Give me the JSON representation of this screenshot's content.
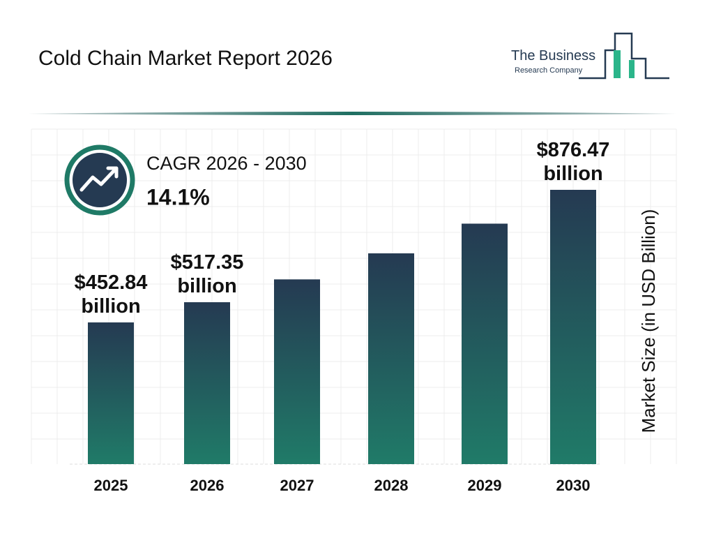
{
  "header": {
    "title": "Cold Chain Market Report 2026",
    "logo_line1": "The Business",
    "logo_line2": "Research Company"
  },
  "cagr": {
    "label": "CAGR 2026 - 2030",
    "value": "14.1%"
  },
  "chart_data": {
    "type": "bar",
    "categories": [
      "2025",
      "2026",
      "2027",
      "2028",
      "2029",
      "2030"
    ],
    "values": [
      452.84,
      517.35,
      590.3,
      673.5,
      768.4,
      876.47
    ],
    "value_labels": [
      "$452.84 billion",
      "$517.35 billion",
      null,
      null,
      null,
      "$876.47 billion"
    ],
    "y_label": "Market Size (in USD Billion)",
    "gradient": [
      "#253a52",
      "#207b68"
    ]
  }
}
